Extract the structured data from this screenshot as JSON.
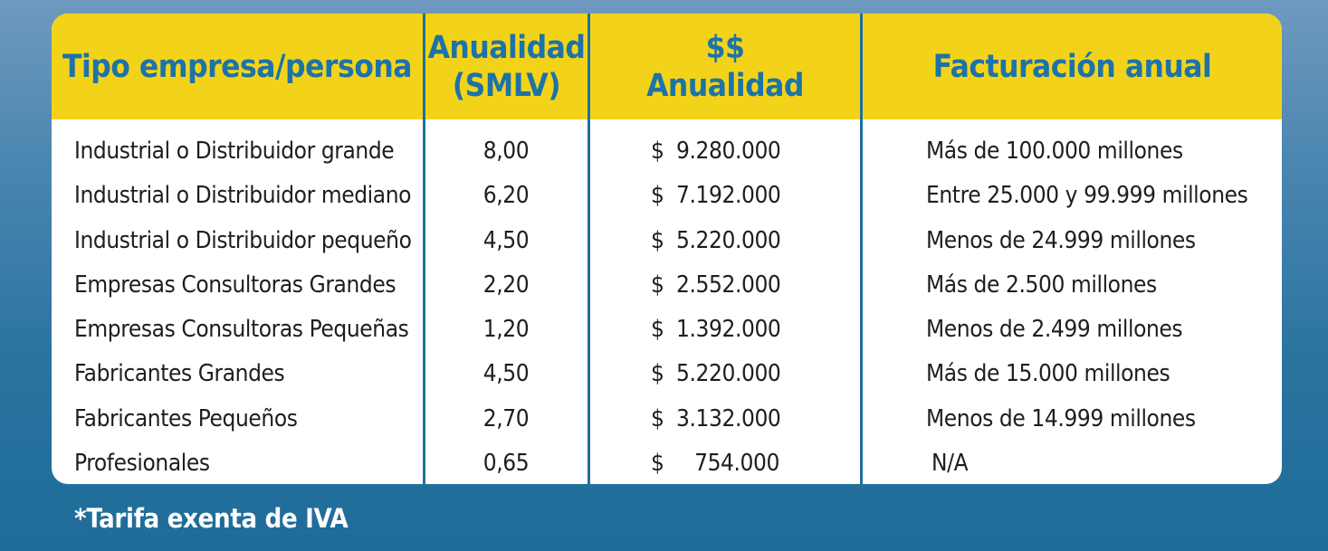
{
  "table": {
    "headers": {
      "tipo": "Tipo empresa/persona",
      "anualidad_line1": "Anualidad",
      "anualidad_line2": "(SMLV)",
      "monto_line1": "$$",
      "monto_line2": "Anualidad",
      "facturacion": "Facturación anual"
    },
    "rows": [
      {
        "tipo": "Industrial o Distribuidor grande",
        "anualidad": "8,00",
        "currency": "$",
        "monto": "9.280.000",
        "facturacion": "Más de 100.000 millones"
      },
      {
        "tipo": "Industrial o Distribuidor mediano",
        "anualidad": "6,20",
        "currency": "$",
        "monto": "7.192.000",
        "facturacion": "Entre 25.000 y 99.999 millones"
      },
      {
        "tipo": "Industrial o Distribuidor pequeño",
        "anualidad": "4,50",
        "currency": "$",
        "monto": "5.220.000",
        "facturacion": "Menos de 24.999 millones"
      },
      {
        "tipo": "Empresas Consultoras Grandes",
        "anualidad": "2,20",
        "currency": "$",
        "monto": "2.552.000",
        "facturacion": "Más de 2.500 millones"
      },
      {
        "tipo": "Empresas Consultoras Pequeñas",
        "anualidad": "1,20",
        "currency": "$",
        "monto": "1.392.000",
        "facturacion": "Menos de 2.499 millones"
      },
      {
        "tipo": "Fabricantes Grandes",
        "anualidad": "4,50",
        "currency": "$",
        "monto": "5.220.000",
        "facturacion": "Más de 15.000 millones"
      },
      {
        "tipo": "Fabricantes Pequeños",
        "anualidad": "2,70",
        "currency": "$",
        "monto": "3.132.000",
        "facturacion": "Menos de 14.999 millones"
      },
      {
        "tipo": "Profesionales",
        "anualidad": "0,65",
        "currency": "$",
        "monto": "754.000",
        "facturacion": "N/A"
      }
    ]
  },
  "footnote": "*Tarifa exenta de IVA",
  "colors": {
    "header_bg": "#f3d31a",
    "header_text": "#1d73a8",
    "divider": "#1f6f9e",
    "background": "#2a74a0"
  }
}
